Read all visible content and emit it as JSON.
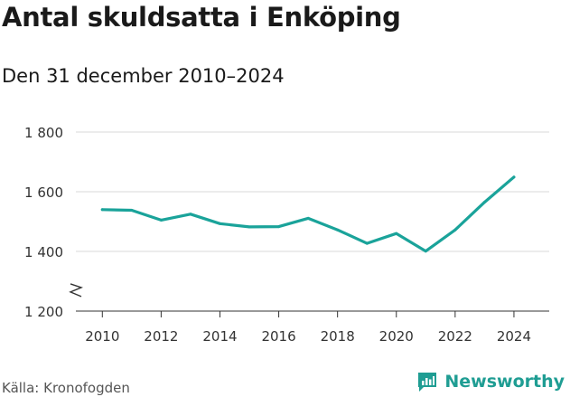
{
  "header": {
    "title": "Antal skuldsatta i Enköping",
    "subtitle": "Den 31 december 2010–2024"
  },
  "footer": {
    "source": "Källa: Kronofogden",
    "brand": "Newsworthy"
  },
  "colors": {
    "line": "#1aa39a",
    "grid": "#d9d9d9",
    "axis": "#333333",
    "brand": "#1f9d93"
  },
  "chart_data": {
    "type": "line",
    "title": "Antal skuldsatta i Enköping",
    "subtitle": "Den 31 december 2010–2024",
    "xlabel": "",
    "ylabel": "",
    "x": [
      2010,
      2011,
      2012,
      2013,
      2014,
      2015,
      2016,
      2017,
      2018,
      2019,
      2020,
      2021,
      2022,
      2023,
      2024
    ],
    "series": [
      {
        "name": "Antal skuldsatta",
        "values": [
          1540,
          1538,
          1505,
          1525,
          1493,
          1482,
          1483,
          1511,
          1472,
          1427,
          1460,
          1401,
          1472,
          1565,
          1649
        ]
      }
    ],
    "ylim": [
      1200,
      1800
    ],
    "yticks": [
      1200,
      1400,
      1600,
      1800
    ],
    "ytick_labels": [
      "1 200",
      "1 400",
      "1 600",
      "1 800"
    ],
    "xticks": [
      2010,
      2012,
      2014,
      2016,
      2018,
      2020,
      2022,
      2024
    ],
    "xtick_labels": [
      "2010",
      "2012",
      "2014",
      "2016",
      "2018",
      "2020",
      "2022",
      "2024"
    ],
    "xlim": [
      2009.1,
      2025.2
    ],
    "grid": true,
    "axis_break": true
  }
}
